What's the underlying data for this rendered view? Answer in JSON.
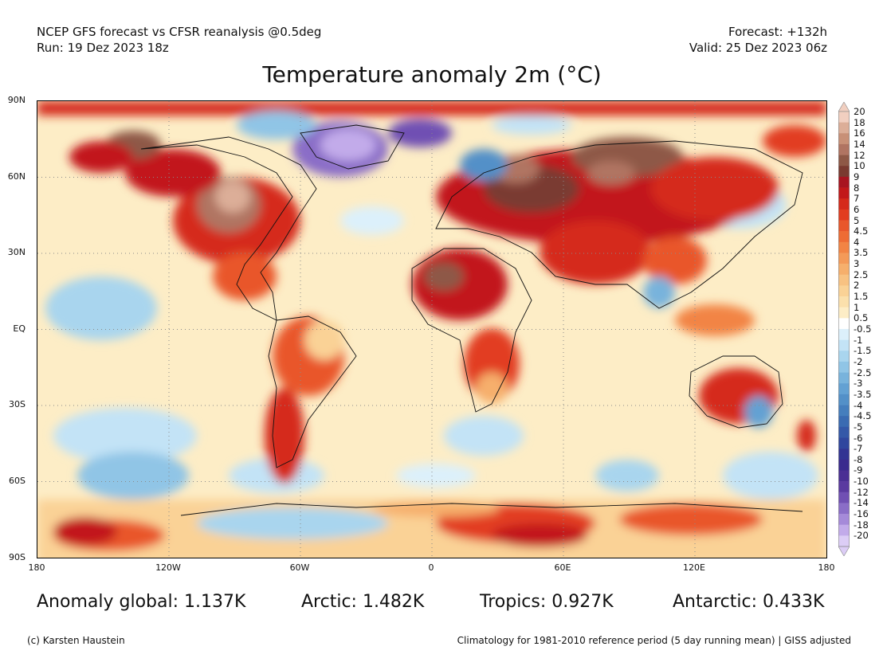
{
  "header": {
    "line1_left": "NCEP GFS forecast vs CFSR reanalysis @0.5deg",
    "line2_left": "Run: 19 Dez 2023 18z",
    "line1_right": "Forecast: +132h",
    "line2_right": "Valid: 25 Dez 2023 06z"
  },
  "title": "Temperature anomaly 2m (°C)",
  "map": {
    "lat_labels": [
      "90N",
      "60N",
      "30N",
      "EQ",
      "30S",
      "60S",
      "90S"
    ],
    "lon_labels": [
      "180",
      "120W",
      "60W",
      "0",
      "60E",
      "120E",
      "180"
    ]
  },
  "colorbar": {
    "labels": [
      "20",
      "18",
      "16",
      "14",
      "12",
      "10",
      "9",
      "8",
      "7",
      "6",
      "5",
      "4.5",
      "4",
      "3.5",
      "3",
      "2.5",
      "2",
      "1.5",
      "1",
      "0.5",
      "-0.5",
      "-1",
      "-1.5",
      "-2",
      "-2.5",
      "-3",
      "-3.5",
      "-4",
      "-4.5",
      "-5",
      "-6",
      "-7",
      "-8",
      "-9",
      "-10",
      "-12",
      "-14",
      "-16",
      "-18",
      "-20"
    ],
    "colors": [
      "#f1cfc0",
      "#dcae98",
      "#c89077",
      "#b07462",
      "#8e5846",
      "#7a3a30",
      "#a81420",
      "#c2181a",
      "#d52a1a",
      "#e23d20",
      "#e9562a",
      "#ee6c34",
      "#f28444",
      "#f49a58",
      "#f6af6c",
      "#f8c282",
      "#fad296",
      "#fbe0ac",
      "#fdedc6",
      "#ffffff",
      "#dcf0fb",
      "#c3e3f6",
      "#a9d5ee",
      "#90c5e6",
      "#78b3dc",
      "#63a1d3",
      "#5390c8",
      "#457ebd",
      "#3a6bb2",
      "#3458a8",
      "#30469e",
      "#323493",
      "#3a2a8e",
      "#4a2f94",
      "#5a3aa0",
      "#7050b3",
      "#8a6dc7",
      "#a58ad9",
      "#c2abea",
      "#dccdf6"
    ]
  },
  "stats": {
    "global": "Anomaly global: 1.137K",
    "arctic": "Arctic: 1.482K",
    "tropics": "Tropics: 0.927K",
    "antarctic": "Antarctic: 0.433K"
  },
  "footer": {
    "left": "(c) Karsten Haustein",
    "right": "Climatology for 1981-2010 reference period (5 day running mean) | GISS adjusted"
  }
}
